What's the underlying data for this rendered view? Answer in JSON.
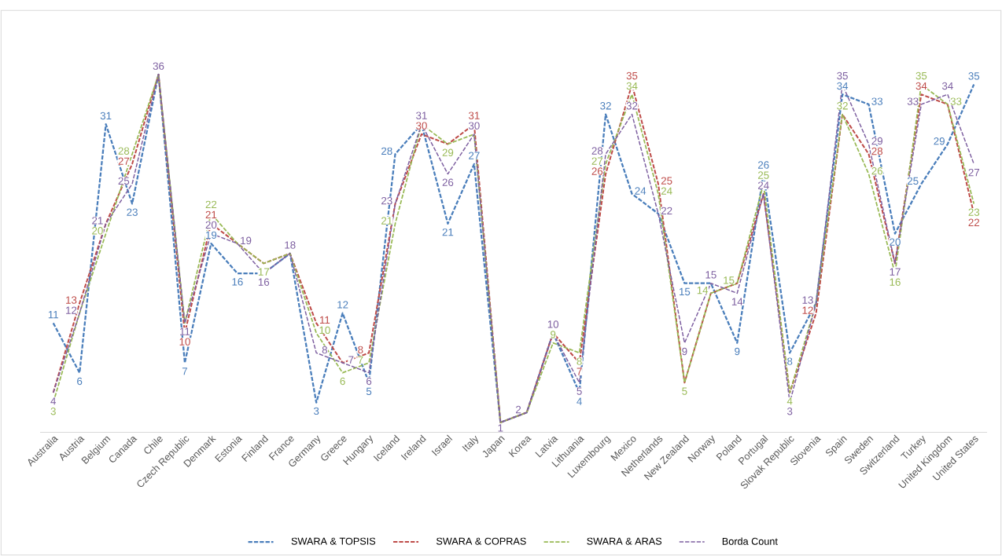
{
  "chart_data": {
    "type": "line",
    "categories": [
      "Australia",
      "Austria",
      "Belgium",
      "Canada",
      "Chile",
      "Czech Republic",
      "Denmark",
      "Estonia",
      "Finland",
      "France",
      "Germany",
      "Greece",
      "Hungary",
      "Iceland",
      "Ireland",
      "Israel",
      "Italy",
      "Japan",
      "Korea",
      "Latvia",
      "Lithuania",
      "Luxembourg",
      "Mexico",
      "Netherlands",
      "New Zealand",
      "Norway",
      "Poland",
      "Portugal",
      "Slovak Republic",
      "Slovenia",
      "Spain",
      "Sweden",
      "Switzerland",
      "Turkey",
      "United Kingdom",
      "United States"
    ],
    "series": [
      {
        "name": "SWARA & TOPSIS",
        "color": "#4a7ebb",
        "values": [
          11,
          6,
          31,
          23,
          36,
          7,
          19,
          16,
          16,
          18,
          3,
          12,
          5,
          28,
          31,
          21,
          27,
          1,
          2,
          10,
          4,
          32,
          24,
          22,
          15,
          15,
          9,
          26,
          8,
          13,
          34,
          33,
          20,
          25,
          29,
          35
        ],
        "value_labels": [
          "11",
          "6",
          "31",
          "23",
          null,
          "7",
          "19",
          "16",
          null,
          null,
          "3",
          "12",
          "5",
          "28",
          null,
          "21",
          "27",
          null,
          null,
          null,
          "4",
          "32",
          "24",
          null,
          "15",
          null,
          "9",
          "26",
          "8",
          null,
          "34",
          "33",
          "20",
          "25",
          "29",
          "35"
        ]
      },
      {
        "name": "SWARA & COPRAS",
        "color": "#be4b48",
        "values": [
          4,
          13,
          21,
          27,
          36,
          10,
          21,
          19,
          17,
          18,
          11,
          7,
          8,
          23,
          30,
          29,
          31,
          1,
          2,
          10,
          7,
          26,
          35,
          25,
          5,
          14,
          15,
          24,
          4,
          12,
          32,
          28,
          17,
          34,
          33,
          22
        ],
        "value_labels": [
          null,
          "13",
          null,
          "27",
          null,
          "10",
          "21",
          null,
          null,
          null,
          "11",
          null,
          "8",
          null,
          "30",
          null,
          "31",
          null,
          null,
          null,
          "7",
          "26",
          "35",
          "25",
          null,
          null,
          null,
          null,
          null,
          "12",
          null,
          "28",
          null,
          "34",
          null,
          "22"
        ]
      },
      {
        "name": "SWARA & ARAS",
        "color": "#98b954",
        "values": [
          3,
          12,
          20,
          28,
          36,
          11,
          22,
          19,
          17,
          18,
          10,
          6,
          7,
          21,
          31,
          29,
          30,
          1,
          2,
          9,
          8,
          27,
          34,
          24,
          5,
          14,
          15,
          25,
          4,
          13,
          32,
          26,
          16,
          35,
          33,
          23
        ],
        "value_labels": [
          "3",
          null,
          "20",
          "28",
          null,
          null,
          "22",
          null,
          "17",
          null,
          "10",
          "6",
          "7",
          "21",
          null,
          "29",
          null,
          null,
          null,
          "9",
          "8",
          "27",
          "34",
          "24",
          "5",
          "14",
          "15",
          "25",
          "4",
          null,
          "32",
          "26",
          "16",
          "35",
          "33",
          "23"
        ]
      },
      {
        "name": "Borda Count",
        "color": "#7d5fa0",
        "values": [
          4,
          12,
          21,
          25,
          36,
          11,
          20,
          19,
          16,
          18,
          8,
          7,
          6,
          23,
          31,
          26,
          30,
          1,
          2,
          10,
          5,
          28,
          32,
          22,
          9,
          15,
          14,
          24,
          3,
          13,
          35,
          29,
          17,
          33,
          34,
          27
        ],
        "value_labels": [
          "4",
          "12",
          "21",
          "25",
          "36",
          "11",
          "20",
          "19",
          "16",
          "18",
          "8",
          "7",
          "6",
          "23",
          "31",
          "26",
          "30",
          "1",
          "2",
          "10",
          "5",
          "28",
          "32",
          "22",
          "9",
          "15",
          "14",
          "24",
          "3",
          "13",
          "35",
          "29",
          "17",
          "33",
          "34",
          "27"
        ]
      }
    ],
    "tick_labels": "x",
    "legend": "bottom",
    "line_style": "dashed",
    "marker": "none",
    "grid": false
  }
}
